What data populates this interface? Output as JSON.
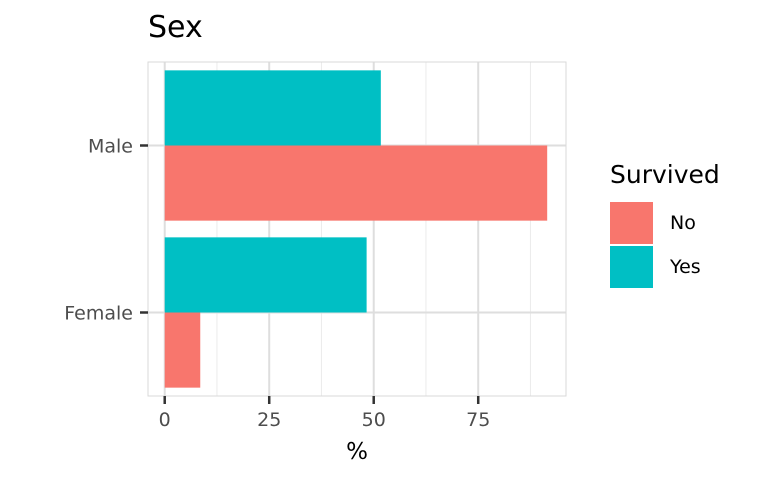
{
  "chart_data": {
    "type": "bar",
    "orientation": "horizontal",
    "title": "Sex",
    "xlabel": "%",
    "ylabel": "",
    "categories": [
      "Female",
      "Male"
    ],
    "series": [
      {
        "name": "No",
        "values": [
          8.5,
          91.5
        ],
        "color": "#F8766D"
      },
      {
        "name": "Yes",
        "values": [
          48.3,
          51.7
        ],
        "color": "#00BFC4"
      }
    ],
    "xlim": [
      -4,
      96
    ],
    "x_ticks": [
      0,
      25,
      50,
      75
    ],
    "x_tick_labels": [
      "0",
      "25",
      "50",
      "75"
    ],
    "grid": true,
    "legend": {
      "title": "Survived",
      "position": "right",
      "entries": [
        "No",
        "Yes"
      ]
    }
  }
}
